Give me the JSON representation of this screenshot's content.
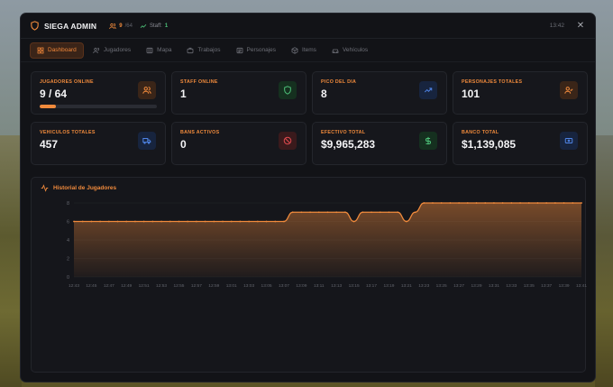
{
  "app": {
    "title": "SIEGA ADMIN",
    "time": "13:42",
    "close_symbol": "✕"
  },
  "header_badges": {
    "players": {
      "value": "9",
      "max": "/64"
    },
    "staff": {
      "label": "Staff:",
      "value": "1"
    }
  },
  "tabs": [
    {
      "label": "Dashboard",
      "icon": "dashboard-icon",
      "active": true
    },
    {
      "label": "Jugadores",
      "icon": "users-icon"
    },
    {
      "label": "Mapa",
      "icon": "map-icon"
    },
    {
      "label": "Trabajos",
      "icon": "briefcase-icon"
    },
    {
      "label": "Personajes",
      "icon": "id-card-icon"
    },
    {
      "label": "Items",
      "icon": "box-icon"
    },
    {
      "label": "Vehículos",
      "icon": "car-icon"
    }
  ],
  "stats": [
    {
      "label": "JUGADORES ONLINE",
      "value": "9 / 64",
      "icon": "users-icon",
      "color": "#f08a3c",
      "progress": 0.14
    },
    {
      "label": "STAFF ONLINE",
      "value": "1",
      "icon": "shield-icon",
      "color": "#4ec27a"
    },
    {
      "label": "PICO DEL DIA",
      "value": "8",
      "icon": "trending-up-icon",
      "color": "#4f84e6"
    },
    {
      "label": "PERSONAJES TOTALES",
      "value": "101",
      "icon": "user-check-icon",
      "color": "#f08a3c"
    },
    {
      "label": "VEHICULOS TOTALES",
      "value": "457",
      "icon": "truck-icon",
      "color": "#4f84e6"
    },
    {
      "label": "BANS ACTIVOS",
      "value": "0",
      "icon": "ban-icon",
      "color": "#e04a4f"
    },
    {
      "label": "EFECTIVO TOTAL",
      "value": "$9,965,283",
      "icon": "dollar-icon",
      "color": "#4ec27a"
    },
    {
      "label": "BANCO TOTAL",
      "value": "$1,139,085",
      "icon": "card-icon",
      "color": "#4f84e6"
    }
  ],
  "chart_panel": {
    "title": "Historial de Jugadores"
  },
  "chart_data": {
    "type": "area",
    "title": "Historial de Jugadores",
    "xlabel": "",
    "ylabel": "",
    "ylim": [
      0,
      8
    ],
    "yticks": [
      0,
      2,
      4,
      6,
      8
    ],
    "grid": true,
    "color": "#f08a3c",
    "x_ticks": [
      "12:43",
      "12:45",
      "12:47",
      "12:49",
      "12:51",
      "12:53",
      "12:55",
      "12:57",
      "12:59",
      "13:01",
      "13:03",
      "13:05",
      "13:07",
      "13:09",
      "13:11",
      "13:13",
      "13:15",
      "13:17",
      "13:19",
      "13:21",
      "13:23",
      "13:25",
      "13:27",
      "13:29",
      "13:31",
      "13:33",
      "13:35",
      "13:37",
      "13:39",
      "13:41"
    ],
    "x_range": [
      "12:43",
      "13:41"
    ],
    "points": [
      [
        "12:43",
        6
      ],
      [
        "13:05",
        6
      ],
      [
        "13:06",
        6
      ],
      [
        "13:07",
        6
      ],
      [
        "13:08",
        7
      ],
      [
        "13:09",
        7
      ],
      [
        "13:13",
        7
      ],
      [
        "13:14",
        7
      ],
      [
        "13:15",
        6
      ],
      [
        "13:16",
        7
      ],
      [
        "13:17",
        7
      ],
      [
        "13:19",
        7
      ],
      [
        "13:20",
        7
      ],
      [
        "13:21",
        6
      ],
      [
        "13:22",
        7
      ],
      [
        "13:23",
        8
      ],
      [
        "13:24",
        8
      ],
      [
        "13:41",
        8
      ]
    ]
  }
}
